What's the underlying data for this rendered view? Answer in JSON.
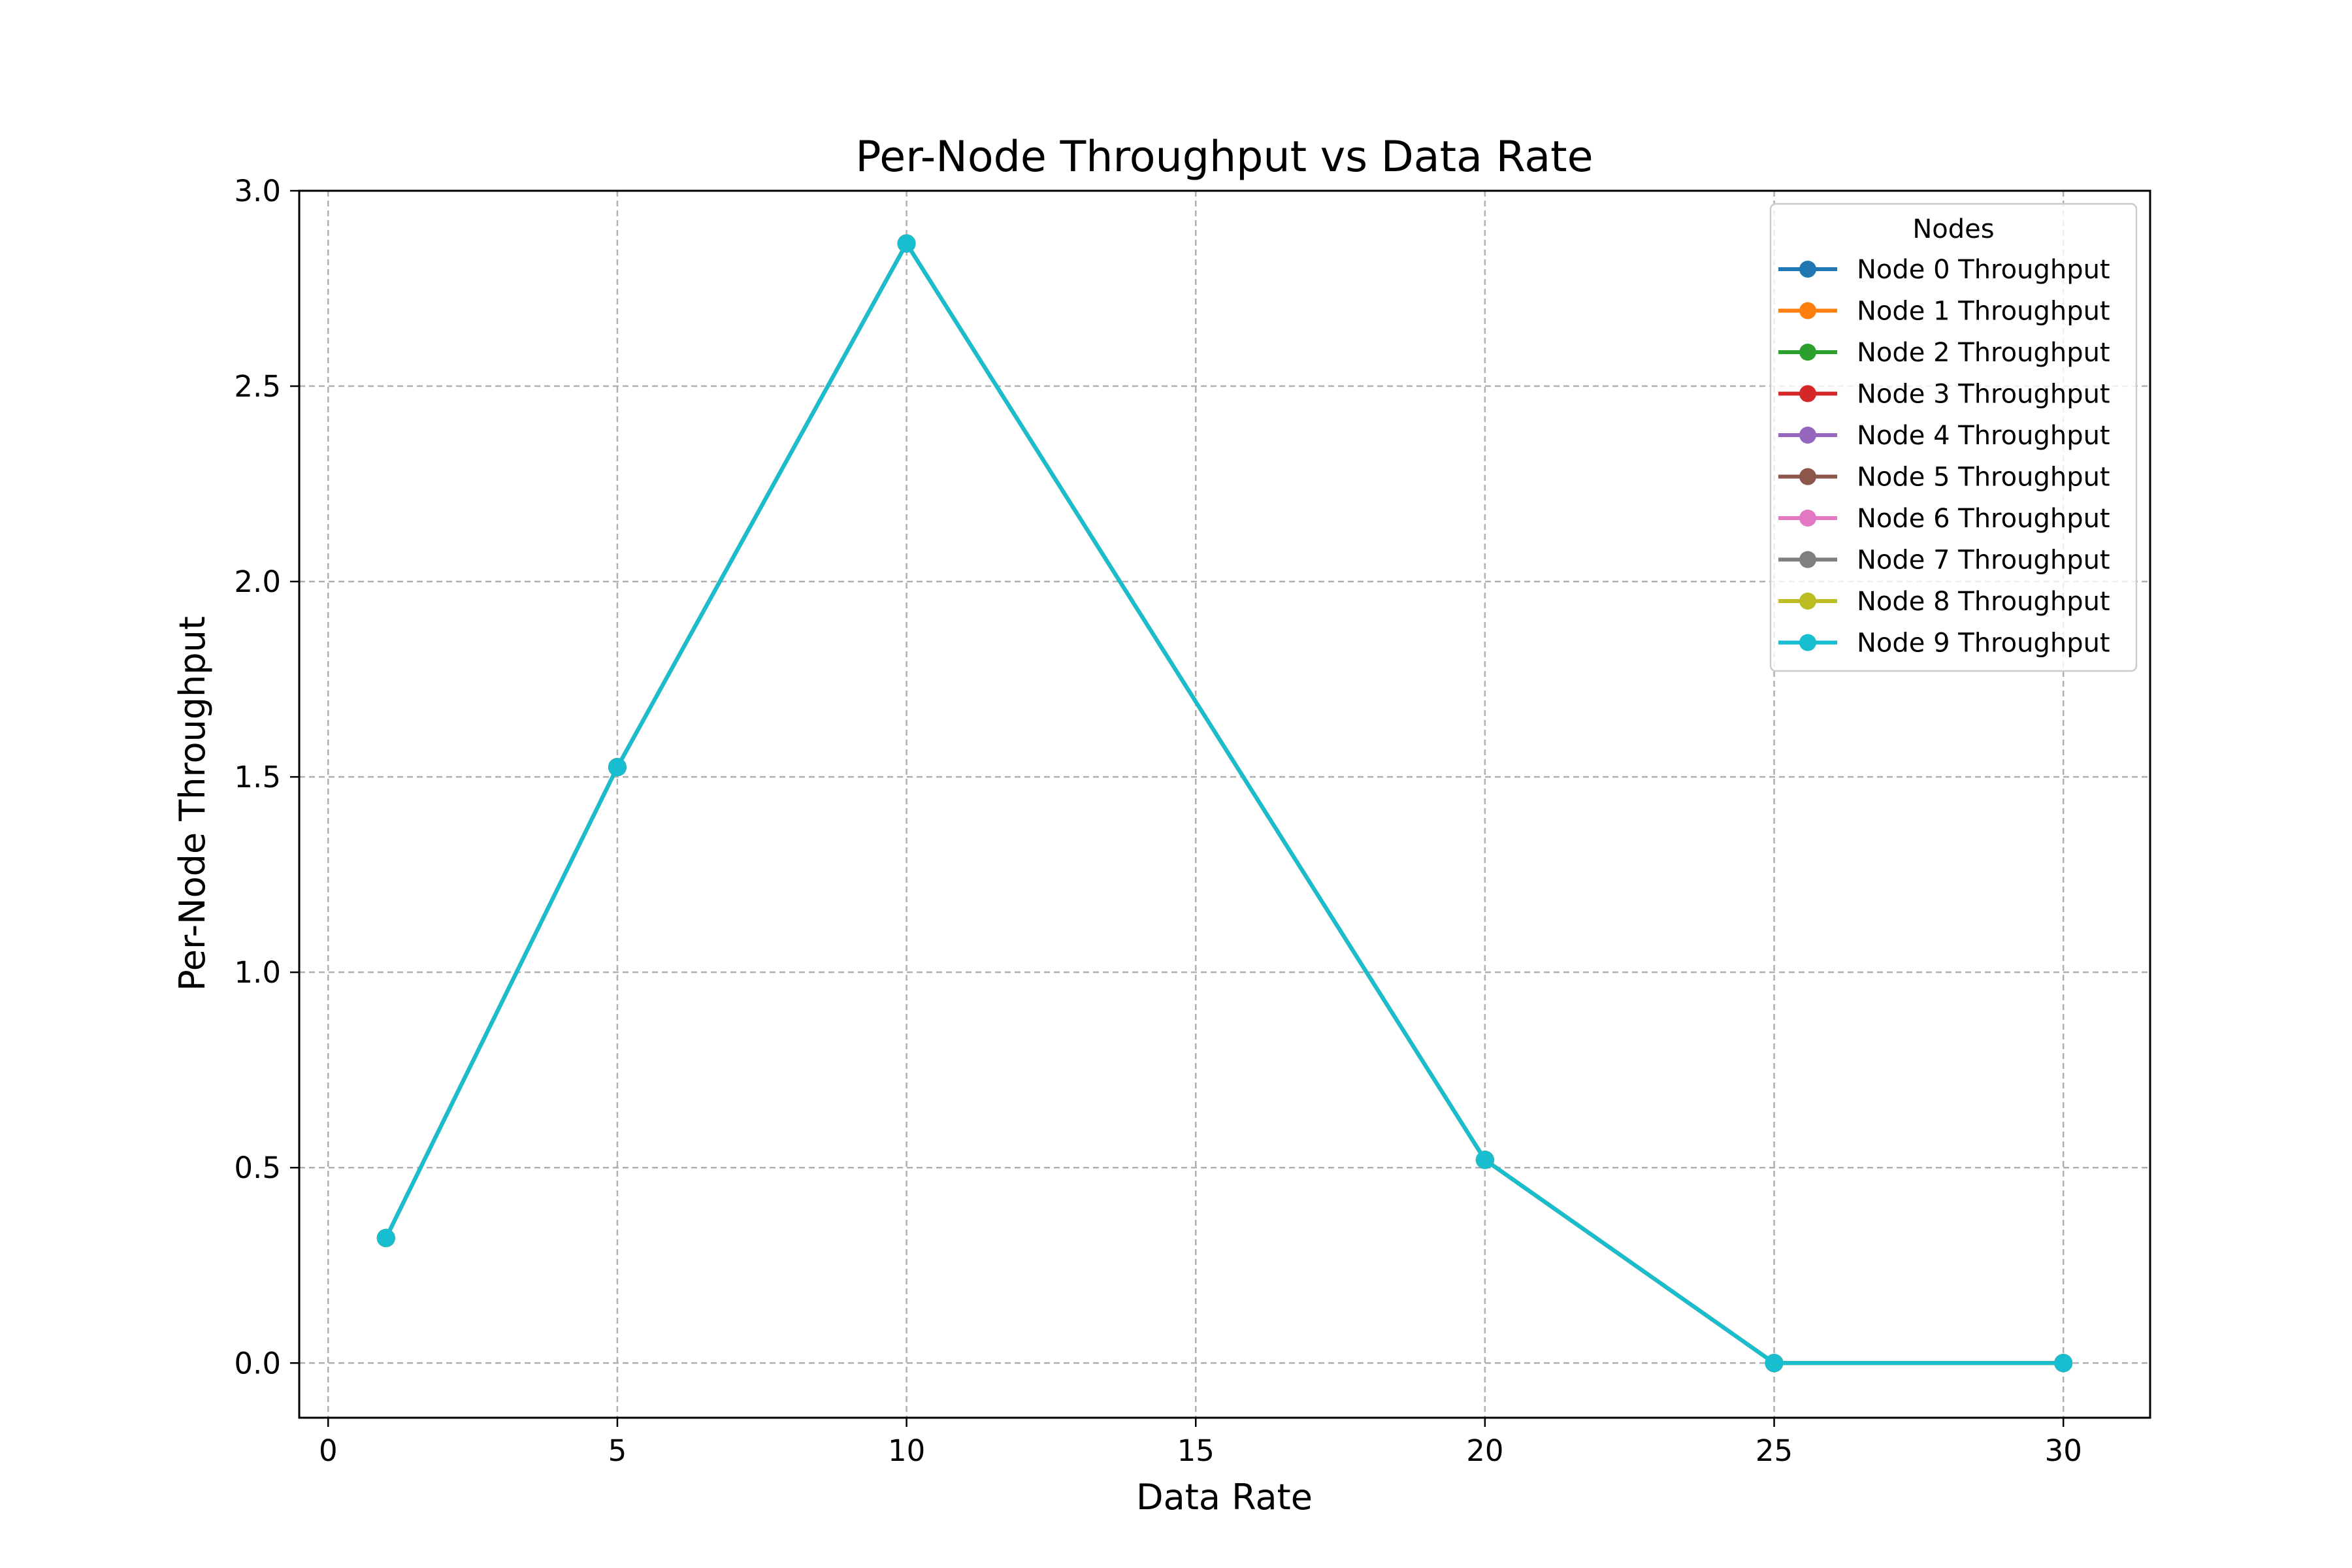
{
  "chart_data": {
    "type": "line",
    "title": "Per-Node Throughput vs Data Rate",
    "xlabel": "Data Rate",
    "ylabel": "Per-Node Throughput",
    "x": [
      1,
      5,
      10,
      20,
      25,
      30
    ],
    "xlim": [
      -0.5,
      31.5
    ],
    "ylim": [
      -0.14,
      3.0
    ],
    "xticks": [
      0,
      5,
      10,
      15,
      20,
      25,
      30
    ],
    "xtick_labels": [
      "0",
      "5",
      "10",
      "15",
      "20",
      "25",
      "30"
    ],
    "yticks": [
      0.0,
      0.5,
      1.0,
      1.5,
      2.0,
      2.5,
      3.0
    ],
    "ytick_labels": [
      "0.0",
      "0.5",
      "1.0",
      "1.5",
      "2.0",
      "2.5",
      "3.0"
    ],
    "grid": true,
    "legend": {
      "title": "Nodes",
      "position": "top-right"
    },
    "series": [
      {
        "name": "Node 0 Throughput",
        "color": "#1f77b4",
        "values": [
          0.32,
          1.525,
          2.865,
          0.52,
          0.0,
          0.0
        ]
      },
      {
        "name": "Node 1 Throughput",
        "color": "#ff7f0e",
        "values": [
          0.32,
          1.525,
          2.865,
          0.52,
          0.0,
          0.0
        ]
      },
      {
        "name": "Node 2 Throughput",
        "color": "#2ca02c",
        "values": [
          0.32,
          1.525,
          2.865,
          0.52,
          0.0,
          0.0
        ]
      },
      {
        "name": "Node 3 Throughput",
        "color": "#d62728",
        "values": [
          0.32,
          1.525,
          2.865,
          0.52,
          0.0,
          0.0
        ]
      },
      {
        "name": "Node 4 Throughput",
        "color": "#9467bd",
        "values": [
          0.32,
          1.525,
          2.865,
          0.52,
          0.0,
          0.0
        ]
      },
      {
        "name": "Node 5 Throughput",
        "color": "#8c564b",
        "values": [
          0.32,
          1.525,
          2.865,
          0.52,
          0.0,
          0.0
        ]
      },
      {
        "name": "Node 6 Throughput",
        "color": "#e377c2",
        "values": [
          0.32,
          1.525,
          2.865,
          0.52,
          0.0,
          0.0
        ]
      },
      {
        "name": "Node 7 Throughput",
        "color": "#7f7f7f",
        "values": [
          0.32,
          1.525,
          2.865,
          0.52,
          0.0,
          0.0
        ]
      },
      {
        "name": "Node 8 Throughput",
        "color": "#bcbd22",
        "values": [
          0.32,
          1.525,
          2.865,
          0.52,
          0.0,
          0.0
        ]
      },
      {
        "name": "Node 9 Throughput",
        "color": "#17becf",
        "values": [
          0.32,
          1.525,
          2.865,
          0.52,
          0.0,
          0.0
        ]
      }
    ]
  }
}
